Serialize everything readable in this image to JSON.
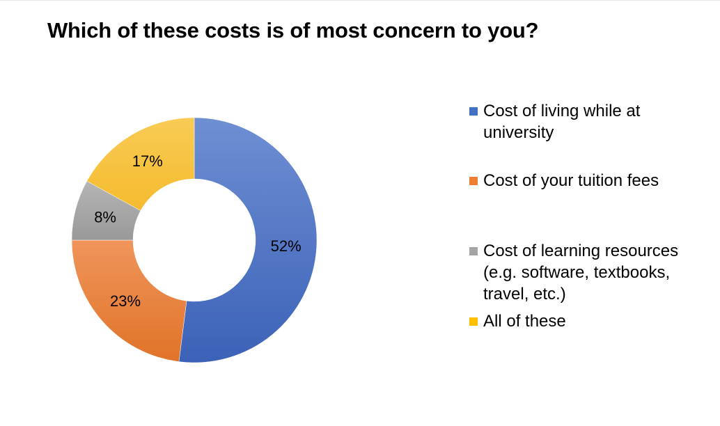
{
  "chart_data": {
    "type": "pie",
    "subtype": "donut",
    "title": "Which of these costs is of most concern to you?",
    "categories": [
      "Cost of living while at university",
      "Cost of your tuition fees",
      "Cost of learning resources (e.g. software, textbooks, travel, etc.)",
      "All of these"
    ],
    "values": [
      52,
      23,
      8,
      17
    ],
    "data_labels": [
      "52%",
      "23%",
      "8%",
      "17%"
    ],
    "colors": [
      "#4472C4",
      "#ED7D31",
      "#A5A5A5",
      "#FFC000"
    ],
    "legend_position": "right"
  }
}
